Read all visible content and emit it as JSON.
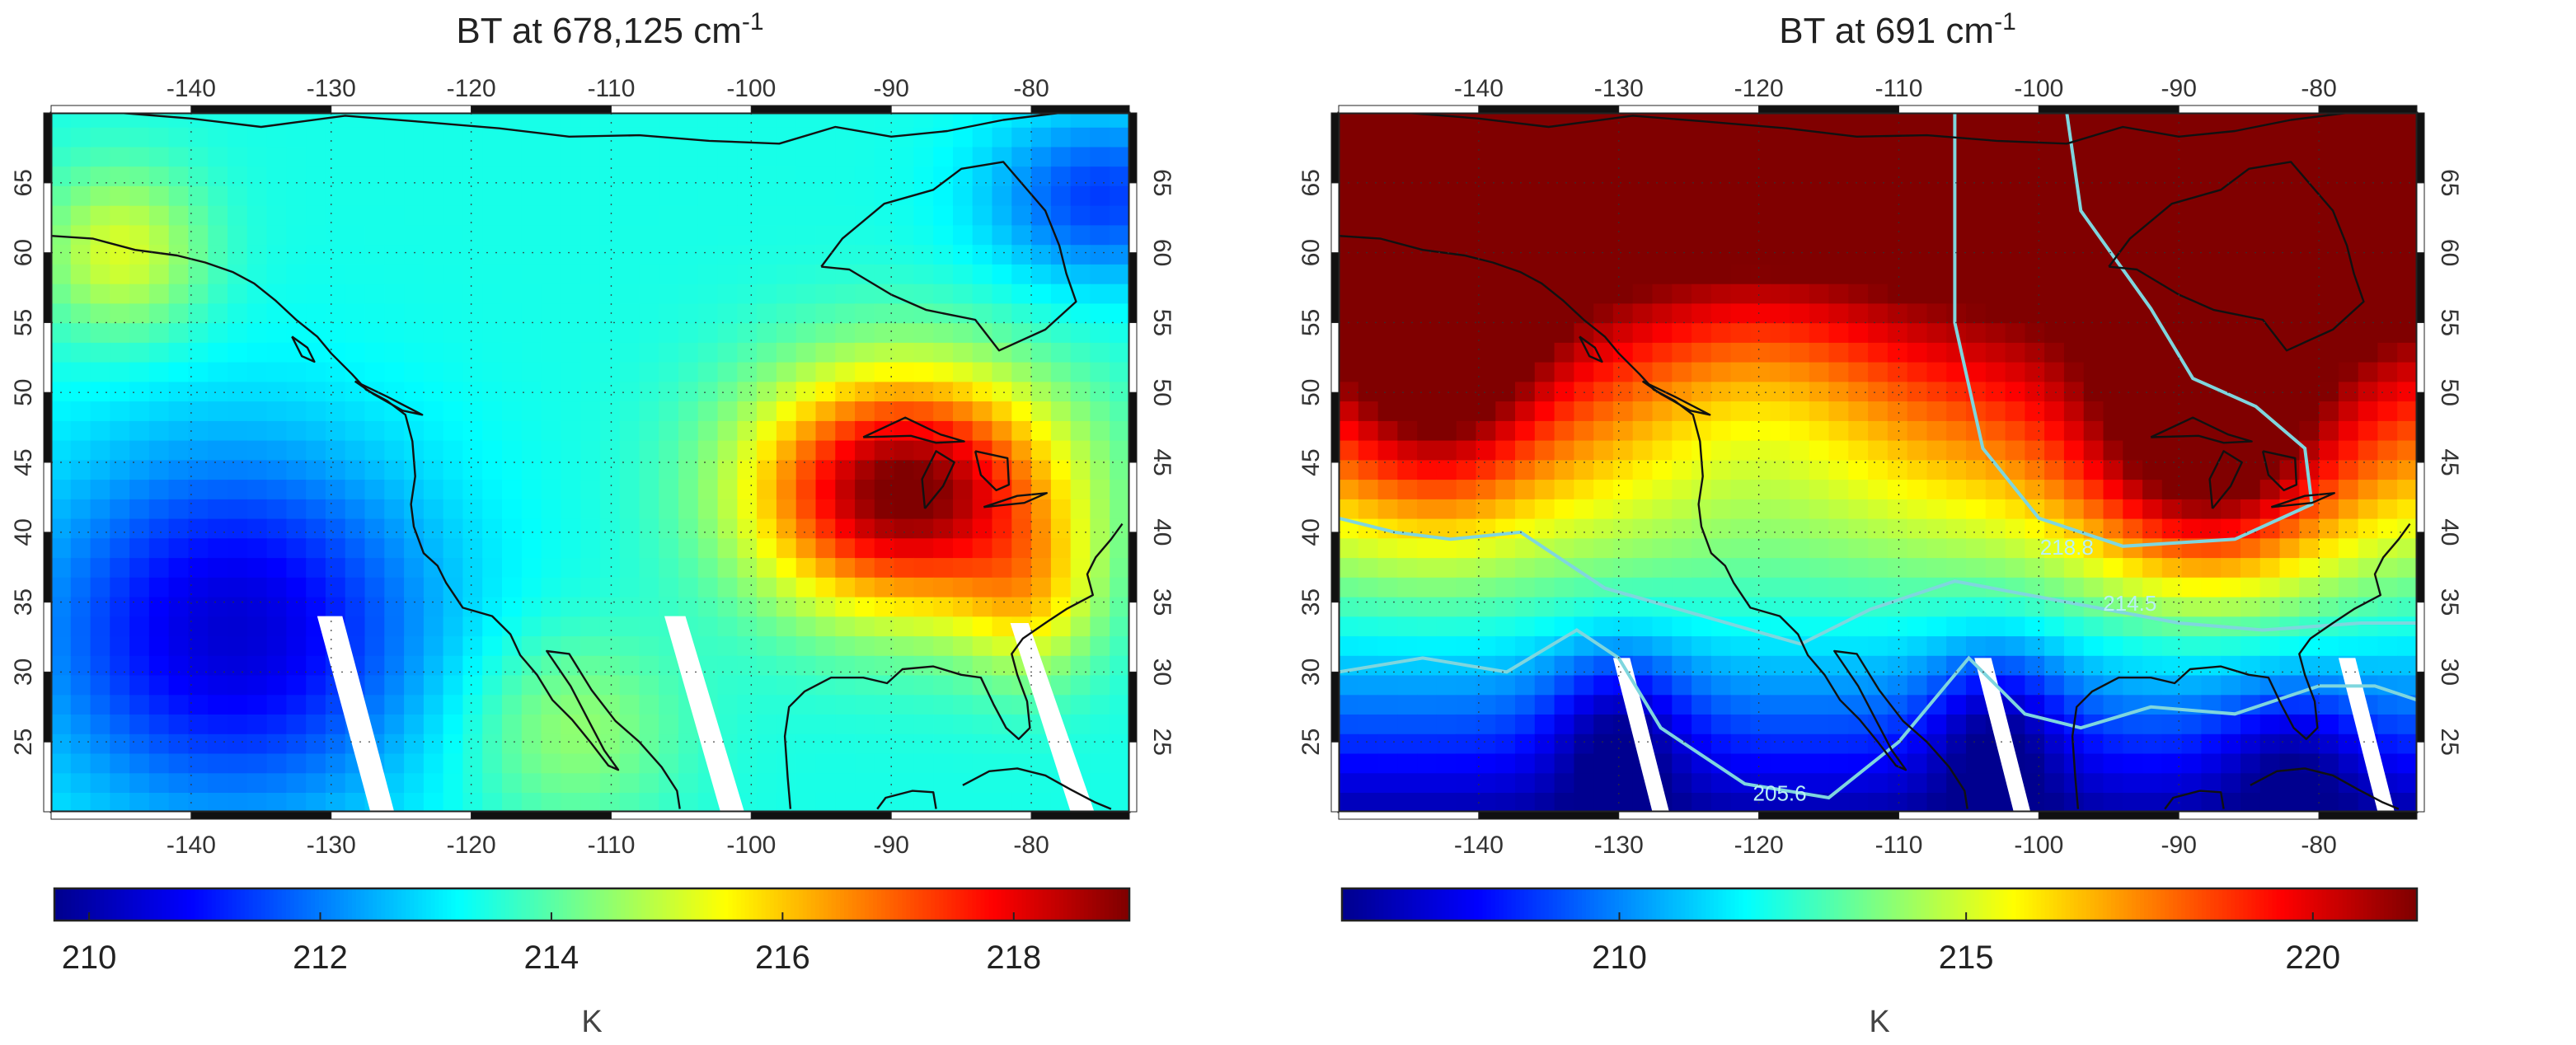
{
  "chart_data": [
    {
      "type": "heatmap",
      "title": "BT at 678,125 cm",
      "title_superscript": "-1",
      "x_ticks": [
        "-140",
        "-130",
        "-120",
        "-110",
        "-100",
        "-90",
        "-80"
      ],
      "x_tick_values": [
        -140,
        -130,
        -120,
        -110,
        -100,
        -90,
        -80
      ],
      "y_ticks": [
        "25",
        "30",
        "35",
        "40",
        "45",
        "50",
        "55",
        "60",
        "65"
      ],
      "y_tick_values": [
        25,
        30,
        35,
        40,
        45,
        50,
        55,
        60,
        65
      ],
      "xlim": [
        -150,
        -73
      ],
      "ylim": [
        20,
        70
      ],
      "grid": true,
      "colorbar": {
        "ticks": [
          "210",
          "212",
          "214",
          "216",
          "218"
        ],
        "tick_values": [
          210,
          212,
          214,
          216,
          218
        ],
        "range": [
          209.7,
          219
        ],
        "label": "K",
        "colormap": "jet"
      },
      "contours": []
    },
    {
      "type": "heatmap",
      "title": "BT at 691 cm",
      "title_superscript": "-1",
      "x_ticks": [
        "-140",
        "-130",
        "-120",
        "-110",
        "-100",
        "-90",
        "-80"
      ],
      "x_tick_values": [
        -140,
        -130,
        -120,
        -110,
        -100,
        -90,
        -80
      ],
      "y_ticks": [
        "25",
        "30",
        "35",
        "40",
        "45",
        "50",
        "55",
        "60",
        "65"
      ],
      "y_tick_values": [
        25,
        30,
        35,
        40,
        45,
        50,
        55,
        60,
        65
      ],
      "xlim": [
        -150,
        -73
      ],
      "ylim": [
        20,
        70
      ],
      "grid": true,
      "colorbar": {
        "ticks": [
          "210",
          "215",
          "220"
        ],
        "tick_values": [
          210,
          215,
          220
        ],
        "range": [
          206,
          221.5
        ],
        "label": "K",
        "colormap": "jet"
      },
      "contours": [
        {
          "label": "218.8",
          "color": "#7fd6de"
        },
        {
          "label": "214.5",
          "color": "#7fd6de"
        },
        {
          "label": "205.6",
          "color": "#7fd6de"
        }
      ]
    }
  ]
}
